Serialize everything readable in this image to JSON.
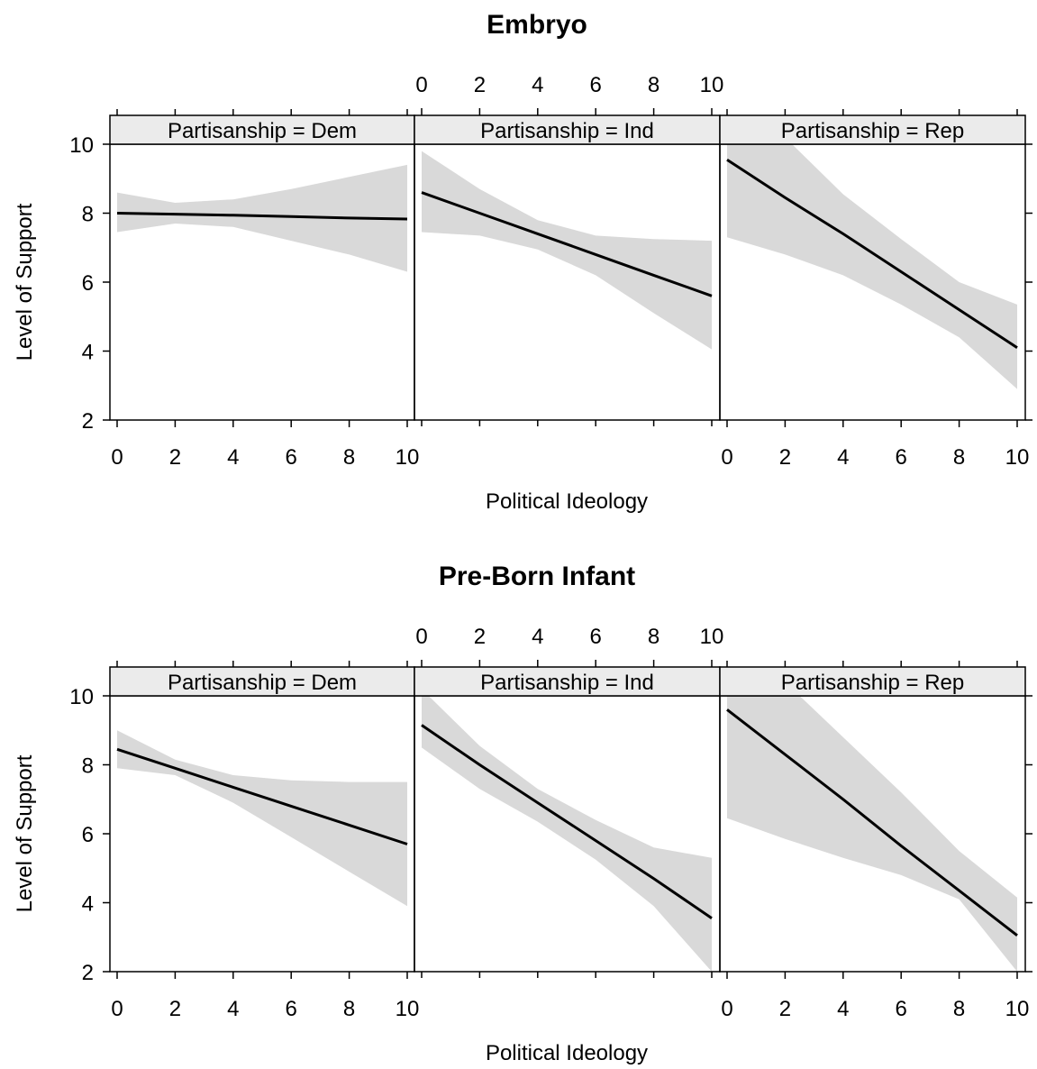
{
  "colors": {
    "band": "#d9d9d9",
    "line": "#000000"
  },
  "chart_data": [
    {
      "type": "line",
      "title": "Embryo",
      "xlabel": "Political Ideology",
      "ylabel": "Level of Support",
      "xlim": [
        0,
        10
      ],
      "ylim": [
        2,
        10
      ],
      "xticks": [
        "0",
        "2",
        "4",
        "6",
        "8",
        "10"
      ],
      "yticks": [
        "2",
        "4",
        "6",
        "8",
        "10"
      ],
      "panels": [
        {
          "strip": "Partisanship = Dem",
          "x": [
            0,
            2,
            4,
            6,
            8,
            10
          ],
          "fit": [
            8.0,
            7.97,
            7.94,
            7.9,
            7.86,
            7.83
          ],
          "lower": [
            7.45,
            7.7,
            7.6,
            7.2,
            6.8,
            6.3
          ],
          "upper": [
            8.6,
            8.3,
            8.4,
            8.7,
            9.05,
            9.4
          ]
        },
        {
          "strip": "Partisanship = Ind",
          "x": [
            0,
            2,
            4,
            6,
            8,
            10
          ],
          "fit": [
            8.6,
            8.0,
            7.4,
            6.8,
            6.2,
            5.6
          ],
          "lower": [
            7.45,
            7.35,
            6.95,
            6.2,
            5.1,
            4.05
          ],
          "upper": [
            9.8,
            8.7,
            7.8,
            7.35,
            7.25,
            7.2
          ]
        },
        {
          "strip": "Partisanship = Rep",
          "x": [
            0,
            2,
            4,
            6,
            8,
            10
          ],
          "fit": [
            9.55,
            8.45,
            7.4,
            6.3,
            5.2,
            4.1
          ],
          "lower": [
            7.3,
            6.8,
            6.2,
            5.35,
            4.4,
            2.9
          ],
          "upper": [
            11.5,
            10.2,
            8.55,
            7.25,
            6.0,
            5.35
          ]
        }
      ]
    },
    {
      "type": "line",
      "title": "Pre-Born Infant",
      "xlabel": "Political Ideology",
      "ylabel": "Level of Support",
      "xlim": [
        0,
        10
      ],
      "ylim": [
        2,
        10
      ],
      "xticks": [
        "0",
        "2",
        "4",
        "6",
        "8",
        "10"
      ],
      "yticks": [
        "2",
        "4",
        "6",
        "8",
        "10"
      ],
      "panels": [
        {
          "strip": "Partisanship = Dem",
          "x": [
            0,
            2,
            4,
            6,
            8,
            10
          ],
          "fit": [
            8.45,
            7.9,
            7.35,
            6.8,
            6.25,
            5.7
          ],
          "lower": [
            7.9,
            7.7,
            6.9,
            5.9,
            4.9,
            3.9
          ],
          "upper": [
            9.0,
            8.15,
            7.7,
            7.55,
            7.5,
            7.5
          ]
        },
        {
          "strip": "Partisanship = Ind",
          "x": [
            0,
            2,
            4,
            6,
            8,
            10
          ],
          "fit": [
            9.15,
            8.0,
            6.9,
            5.8,
            4.7,
            3.55
          ],
          "lower": [
            8.5,
            7.3,
            6.35,
            5.25,
            3.9,
            2.0
          ],
          "upper": [
            10.2,
            8.55,
            7.3,
            6.4,
            5.6,
            5.3
          ]
        },
        {
          "strip": "Partisanship = Rep",
          "x": [
            0,
            2,
            4,
            6,
            8,
            10
          ],
          "fit": [
            9.6,
            8.3,
            7.0,
            5.65,
            4.35,
            3.05
          ],
          "lower": [
            6.45,
            5.85,
            5.3,
            4.8,
            4.1,
            2.0
          ],
          "upper": [
            11.9,
            10.4,
            8.8,
            7.2,
            5.5,
            4.15
          ]
        }
      ]
    }
  ]
}
